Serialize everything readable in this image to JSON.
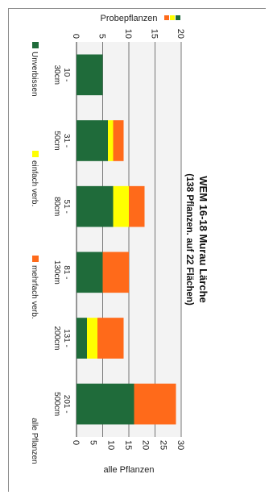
{
  "chart_data": {
    "type": "bar",
    "stacked": true,
    "orientation": "vertical",
    "image_rotation": "90deg clockwise",
    "title": "WEM 16-18 Murau Lärche",
    "subtitle": "(138 Pflanzen.  auf 22 Flächen)",
    "categories": [
      "10 - 30cm",
      "31 - 50cm",
      "51 - 80cm",
      "81 - 130cm",
      "131 - 200cm",
      "201 - 500cm"
    ],
    "category_lines": [
      [
        "10 -",
        "30cm"
      ],
      [
        "31 -",
        "50cm"
      ],
      [
        "51 -",
        "80cm"
      ],
      [
        "81 -",
        "130cm"
      ],
      [
        "131 -",
        "200cm"
      ],
      [
        "201 -",
        "500cm"
      ]
    ],
    "series": [
      {
        "name": "Unverbissen",
        "color": "#1f6b3a",
        "values": [
          5,
          6,
          7,
          5,
          2,
          11
        ]
      },
      {
        "name": "einfach verb.",
        "color": "#ffff00",
        "values": [
          0,
          1,
          3,
          0,
          2,
          0
        ]
      },
      {
        "name": "mehrfach verb.",
        "color": "#ff6a1a",
        "values": [
          0,
          2,
          3,
          5,
          5,
          8
        ]
      }
    ],
    "y_axes": [
      {
        "side": "left",
        "label": "Probepflanzen",
        "range": [
          0,
          20
        ],
        "ticks": [
          0,
          5,
          10,
          15,
          20
        ]
      },
      {
        "side": "right",
        "label": "alle Pflanzen",
        "range": [
          0,
          30
        ],
        "ticks": [
          0,
          5,
          10,
          15,
          20,
          25,
          30
        ]
      }
    ],
    "value_axis": "left",
    "grid": true,
    "legend_position": "bottom",
    "legend_extra": "alle Pflanzen"
  }
}
